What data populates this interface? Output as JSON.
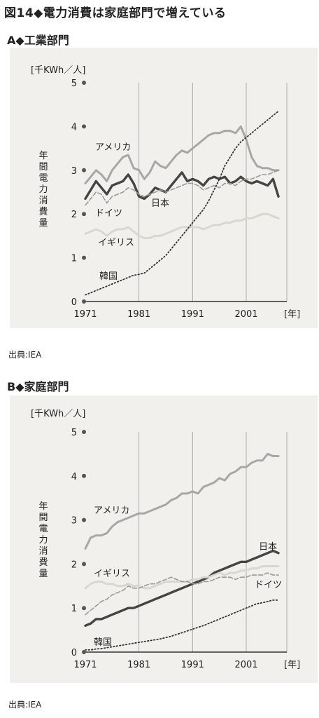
{
  "figure": {
    "title": "図14◆電力消費は家庭部門で増えている",
    "source": "出典:IEA"
  },
  "chart_data": [
    {
      "type": "line",
      "panel_label": "A◆工業部門",
      "unit": "[千KWh／人]",
      "ylabel": "年間電力消費量",
      "xlabel": "[年]",
      "xlim": [
        1971,
        2007
      ],
      "ylim": [
        0,
        5
      ],
      "xticks": [
        1971,
        1981,
        1991,
        2001
      ],
      "yticks": [
        0,
        1,
        2,
        3,
        4,
        5
      ],
      "grid": "vertical",
      "series": [
        {
          "name": "アメリカ",
          "style": "solid",
          "color": "#a7a7a7",
          "x": [
            1971,
            1972,
            1973,
            1974,
            1975,
            1976,
            1977,
            1978,
            1979,
            1980,
            1981,
            1982,
            1983,
            1984,
            1985,
            1986,
            1987,
            1988,
            1989,
            1990,
            1991,
            1992,
            1993,
            1994,
            1995,
            1996,
            1997,
            1998,
            1999,
            2000,
            2001,
            2002,
            2003,
            2004,
            2005,
            2006,
            2007
          ],
          "y": [
            2.7,
            2.85,
            3.0,
            2.9,
            2.75,
            3.0,
            3.15,
            3.3,
            3.35,
            3.05,
            3.0,
            2.8,
            2.95,
            3.2,
            3.1,
            3.05,
            3.2,
            3.35,
            3.45,
            3.4,
            3.5,
            3.6,
            3.7,
            3.8,
            3.85,
            3.85,
            3.9,
            3.9,
            3.85,
            4.0,
            3.7,
            3.3,
            3.1,
            3.05,
            3.05,
            3.0,
            3.0
          ]
        },
        {
          "name": "日本",
          "style": "solid",
          "color": "#444444",
          "x": [
            1971,
            1972,
            1973,
            1974,
            1975,
            1976,
            1977,
            1978,
            1979,
            1980,
            1981,
            1982,
            1983,
            1984,
            1985,
            1986,
            1987,
            1988,
            1989,
            1990,
            1991,
            1992,
            1993,
            1994,
            1995,
            1996,
            1997,
            1998,
            1999,
            2000,
            2001,
            2002,
            2003,
            2004,
            2005,
            2006,
            2007
          ],
          "y": [
            2.35,
            2.55,
            2.75,
            2.6,
            2.45,
            2.65,
            2.7,
            2.75,
            2.9,
            2.7,
            2.4,
            2.35,
            2.45,
            2.6,
            2.55,
            2.5,
            2.65,
            2.8,
            2.95,
            2.75,
            2.8,
            2.75,
            2.65,
            2.8,
            2.85,
            2.8,
            2.85,
            2.7,
            2.75,
            2.85,
            2.75,
            2.7,
            2.75,
            2.7,
            2.65,
            2.8,
            2.4
          ]
        },
        {
          "name": "ドイツ",
          "style": "dashed",
          "color": "#9a9a9a",
          "x": [
            1971,
            1972,
            1973,
            1974,
            1975,
            1976,
            1977,
            1978,
            1979,
            1980,
            1981,
            1982,
            1983,
            1984,
            1985,
            1986,
            1987,
            1988,
            1989,
            1990,
            1991,
            1992,
            1993,
            1994,
            1995,
            1996,
            1997,
            1998,
            1999,
            2000,
            2001,
            2002,
            2003,
            2004,
            2005,
            2006,
            2007
          ],
          "y": [
            2.2,
            2.35,
            2.5,
            2.45,
            2.25,
            2.4,
            2.45,
            2.5,
            2.6,
            2.55,
            2.45,
            2.4,
            2.45,
            2.5,
            2.55,
            2.5,
            2.55,
            2.6,
            2.65,
            2.7,
            2.7,
            2.65,
            2.55,
            2.6,
            2.65,
            2.6,
            2.7,
            2.7,
            2.65,
            2.75,
            2.8,
            2.8,
            2.85,
            2.9,
            2.9,
            2.95,
            3.0
          ]
        },
        {
          "name": "イギリス",
          "style": "solid",
          "color": "#d8d8d0",
          "x": [
            1971,
            1972,
            1973,
            1974,
            1975,
            1976,
            1977,
            1978,
            1979,
            1980,
            1981,
            1982,
            1983,
            1984,
            1985,
            1986,
            1987,
            1988,
            1989,
            1990,
            1991,
            1992,
            1993,
            1994,
            1995,
            1996,
            1997,
            1998,
            1999,
            2000,
            2001,
            2002,
            2003,
            2004,
            2005,
            2006,
            2007
          ],
          "y": [
            1.55,
            1.6,
            1.65,
            1.6,
            1.5,
            1.6,
            1.65,
            1.65,
            1.7,
            1.6,
            1.5,
            1.45,
            1.45,
            1.5,
            1.5,
            1.55,
            1.6,
            1.65,
            1.7,
            1.7,
            1.7,
            1.7,
            1.65,
            1.7,
            1.75,
            1.75,
            1.8,
            1.8,
            1.85,
            1.85,
            1.9,
            1.9,
            1.95,
            2.0,
            2.0,
            1.95,
            1.9
          ]
        },
        {
          "name": "韓国",
          "style": "dotted",
          "color": "#333333",
          "x": [
            1971,
            1972,
            1973,
            1974,
            1975,
            1976,
            1977,
            1978,
            1979,
            1980,
            1981,
            1982,
            1983,
            1984,
            1985,
            1986,
            1987,
            1988,
            1989,
            1990,
            1991,
            1992,
            1993,
            1994,
            1995,
            1996,
            1997,
            1998,
            1999,
            2000,
            2001,
            2002,
            2003,
            2004,
            2005,
            2006,
            2007
          ],
          "y": [
            0.15,
            0.2,
            0.25,
            0.3,
            0.35,
            0.4,
            0.45,
            0.5,
            0.55,
            0.6,
            0.62,
            0.65,
            0.75,
            0.85,
            0.95,
            1.05,
            1.2,
            1.35,
            1.5,
            1.65,
            1.8,
            1.95,
            2.1,
            2.3,
            2.55,
            2.8,
            3.1,
            3.3,
            3.5,
            3.65,
            3.75,
            3.85,
            3.95,
            4.05,
            4.15,
            4.25,
            4.35
          ]
        }
      ]
    },
    {
      "type": "line",
      "panel_label": "B◆家庭部門",
      "unit": "[千KWh／人]",
      "ylabel": "年間電力消費量",
      "xlabel": "[年]",
      "xlim": [
        1971,
        2007
      ],
      "ylim": [
        0,
        5
      ],
      "xticks": [
        1971,
        1981,
        1991,
        2001
      ],
      "yticks": [
        0,
        1,
        2,
        3,
        4,
        5
      ],
      "grid": "vertical",
      "series": [
        {
          "name": "アメリカ",
          "style": "solid",
          "color": "#a7a7a7",
          "x": [
            1971,
            1972,
            1973,
            1974,
            1975,
            1976,
            1977,
            1978,
            1979,
            1980,
            1981,
            1982,
            1983,
            1984,
            1985,
            1986,
            1987,
            1988,
            1989,
            1990,
            1991,
            1992,
            1993,
            1994,
            1995,
            1996,
            1997,
            1998,
            1999,
            2000,
            2001,
            2002,
            2003,
            2004,
            2005,
            2006,
            2007
          ],
          "y": [
            2.35,
            2.6,
            2.65,
            2.65,
            2.7,
            2.85,
            2.95,
            3.0,
            3.05,
            3.1,
            3.15,
            3.15,
            3.2,
            3.25,
            3.3,
            3.35,
            3.45,
            3.5,
            3.6,
            3.6,
            3.65,
            3.6,
            3.75,
            3.8,
            3.85,
            3.95,
            3.9,
            4.05,
            4.1,
            4.2,
            4.2,
            4.3,
            4.35,
            4.35,
            4.5,
            4.45,
            4.45
          ]
        },
        {
          "name": "日本",
          "style": "solid",
          "color": "#444444",
          "x": [
            1971,
            1972,
            1973,
            1974,
            1975,
            1976,
            1977,
            1978,
            1979,
            1980,
            1981,
            1982,
            1983,
            1984,
            1985,
            1986,
            1987,
            1988,
            1989,
            1990,
            1991,
            1992,
            1993,
            1994,
            1995,
            1996,
            1997,
            1998,
            1999,
            2000,
            2001,
            2002,
            2003,
            2004,
            2005,
            2006,
            2007
          ],
          "y": [
            0.6,
            0.65,
            0.75,
            0.75,
            0.8,
            0.85,
            0.9,
            0.95,
            1.0,
            1.0,
            1.05,
            1.1,
            1.15,
            1.2,
            1.25,
            1.3,
            1.35,
            1.4,
            1.45,
            1.5,
            1.55,
            1.6,
            1.65,
            1.7,
            1.8,
            1.85,
            1.9,
            1.95,
            2.0,
            2.05,
            2.05,
            2.1,
            2.15,
            2.2,
            2.25,
            2.3,
            2.25
          ]
        },
        {
          "name": "イギリス",
          "style": "solid",
          "color": "#d8d8d0",
          "x": [
            1971,
            1972,
            1973,
            1974,
            1975,
            1976,
            1977,
            1978,
            1979,
            1980,
            1981,
            1982,
            1983,
            1984,
            1985,
            1986,
            1987,
            1988,
            1989,
            1990,
            1991,
            1992,
            1993,
            1994,
            1995,
            1996,
            1997,
            1998,
            1999,
            2000,
            2001,
            2002,
            2003,
            2004,
            2005,
            2006,
            2007
          ],
          "y": [
            1.45,
            1.55,
            1.6,
            1.6,
            1.55,
            1.55,
            1.5,
            1.5,
            1.55,
            1.5,
            1.5,
            1.45,
            1.45,
            1.5,
            1.55,
            1.6,
            1.6,
            1.6,
            1.6,
            1.6,
            1.65,
            1.65,
            1.7,
            1.7,
            1.75,
            1.8,
            1.75,
            1.8,
            1.8,
            1.85,
            1.85,
            1.9,
            1.9,
            1.95,
            1.95,
            1.95,
            1.95
          ]
        },
        {
          "name": "ドイツ",
          "style": "dashed",
          "color": "#9a9a9a",
          "x": [
            1971,
            1972,
            1973,
            1974,
            1975,
            1976,
            1977,
            1978,
            1979,
            1980,
            1981,
            1982,
            1983,
            1984,
            1985,
            1986,
            1987,
            1988,
            1989,
            1990,
            1991,
            1992,
            1993,
            1994,
            1995,
            1996,
            1997,
            1998,
            1999,
            2000,
            2001,
            2002,
            2003,
            2004,
            2005,
            2006,
            2007
          ],
          "y": [
            0.85,
            0.95,
            1.05,
            1.15,
            1.2,
            1.3,
            1.35,
            1.4,
            1.5,
            1.45,
            1.45,
            1.5,
            1.55,
            1.55,
            1.6,
            1.65,
            1.7,
            1.65,
            1.6,
            1.6,
            1.55,
            1.55,
            1.6,
            1.6,
            1.65,
            1.7,
            1.7,
            1.7,
            1.65,
            1.7,
            1.7,
            1.75,
            1.75,
            1.75,
            1.8,
            1.75,
            1.75
          ]
        },
        {
          "name": "韓国",
          "style": "dotted",
          "color": "#333333",
          "x": [
            1971,
            1972,
            1973,
            1974,
            1975,
            1976,
            1977,
            1978,
            1979,
            1980,
            1981,
            1982,
            1983,
            1984,
            1985,
            1986,
            1987,
            1988,
            1989,
            1990,
            1991,
            1992,
            1993,
            1994,
            1995,
            1996,
            1997,
            1998,
            1999,
            2000,
            2001,
            2002,
            2003,
            2004,
            2005,
            2006,
            2007
          ],
          "y": [
            0.05,
            0.05,
            0.07,
            0.08,
            0.1,
            0.12,
            0.14,
            0.16,
            0.18,
            0.2,
            0.22,
            0.24,
            0.26,
            0.28,
            0.3,
            0.33,
            0.36,
            0.4,
            0.44,
            0.48,
            0.52,
            0.56,
            0.6,
            0.65,
            0.7,
            0.75,
            0.8,
            0.85,
            0.9,
            0.95,
            1.0,
            1.05,
            1.1,
            1.12,
            1.15,
            1.18,
            1.18
          ]
        }
      ]
    }
  ]
}
